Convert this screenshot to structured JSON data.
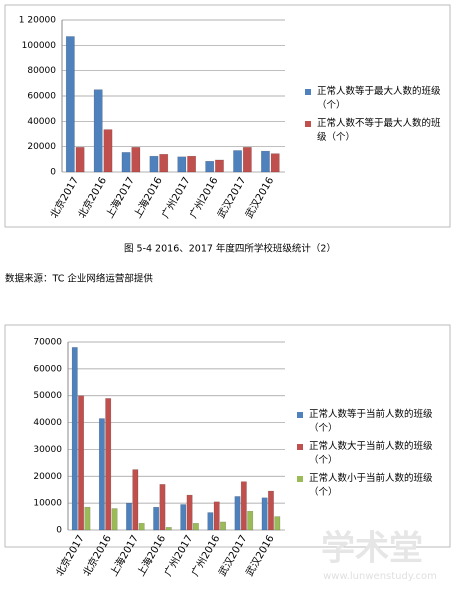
{
  "chart_data": [
    {
      "type": "bar",
      "categories": [
        "北京2017",
        "北京2016",
        "上海2017",
        "上海2016",
        "广州2017",
        "广州2016",
        "武汉2017",
        "武汉2016"
      ],
      "series": [
        {
          "name": "正常人数等于最大人数的班级（个）",
          "color": "#4f81bd",
          "values": [
            107000,
            65000,
            15500,
            12500,
            12000,
            8500,
            17000,
            16500
          ]
        },
        {
          "name": "正常人数不等于最大人数的班级（个）",
          "color": "#c0504d",
          "values": [
            19500,
            33500,
            19500,
            14000,
            12500,
            9500,
            19500,
            14500
          ]
        }
      ],
      "ylim": [
        0,
        120000
      ],
      "yticks": [
        0,
        20000,
        40000,
        60000,
        80000,
        100000,
        {
          "value": 120000,
          "label": "1 20000"
        }
      ],
      "grid": true,
      "legend": "right"
    },
    {
      "type": "bar",
      "categories": [
        "北京2017",
        "北京2016",
        "上海2017",
        "上海2016",
        "广州2017",
        "广州2016",
        "武汉2017",
        "武汉2016"
      ],
      "series": [
        {
          "name": "正常人数等于当前人数的班级（个）",
          "color": "#4f81bd",
          "values": [
            68000,
            41500,
            10000,
            8500,
            9500,
            6500,
            12500,
            12000
          ]
        },
        {
          "name": "正常人数大于当前人数的班级（个）",
          "color": "#c0504d",
          "values": [
            50000,
            49000,
            22500,
            17000,
            13000,
            10500,
            18000,
            14500
          ]
        },
        {
          "name": "正常人数小于当前人数的班级（个）",
          "color": "#9bbb59",
          "values": [
            8500,
            8000,
            2500,
            1000,
            2500,
            3000,
            7000,
            5000
          ]
        }
      ],
      "ylim": [
        0,
        70000
      ],
      "yticks": [
        0,
        10000,
        20000,
        30000,
        40000,
        50000,
        60000,
        70000
      ],
      "grid": true,
      "legend": "right"
    }
  ],
  "caption": "图 5-4  2016、2017 年度四所学校班级统计（2）",
  "source": "数据来源：TC 企业网络运营部提供",
  "watermark": {
    "logo": "学术堂",
    "url": "www.lunwenstudy.com"
  }
}
